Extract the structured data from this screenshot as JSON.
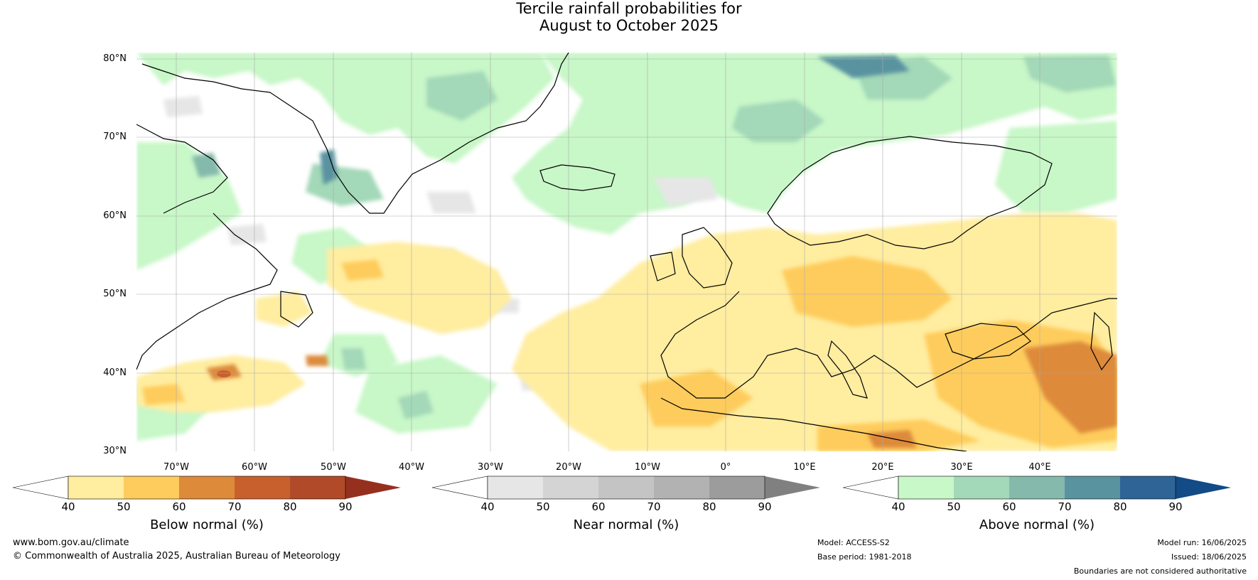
{
  "title": {
    "line1": "Tercile rainfall probabilities for",
    "line2": "August to October 2025"
  },
  "map": {
    "lat_labels": [
      "80°N",
      "70°N",
      "60°N",
      "50°N",
      "40°N",
      "30°N"
    ],
    "lon_labels": [
      "70°W",
      "60°W",
      "50°W",
      "40°W",
      "30°W",
      "20°W",
      "10°W",
      "0°",
      "10°E",
      "20°E",
      "30°E",
      "40°E"
    ],
    "extent": {
      "lon_min": -76,
      "lon_max": 49,
      "lat_min": 30,
      "lat_max": 81
    }
  },
  "colorbars": [
    {
      "name": "below-normal",
      "title": "Below normal (%)",
      "ticks": [
        "40",
        "50",
        "60",
        "70",
        "80",
        "90"
      ],
      "colors": [
        "#ffffff",
        "#ffeda0",
        "#fecc5c",
        "#dd8a3a",
        "#c8602e",
        "#b04a28",
        "#96301e"
      ]
    },
    {
      "name": "near-normal",
      "title": "Near normal (%)",
      "ticks": [
        "40",
        "50",
        "60",
        "70",
        "80",
        "90"
      ],
      "colors": [
        "#ffffff",
        "#e6e6e6",
        "#d4d4d4",
        "#c4c4c4",
        "#b2b2b2",
        "#9c9c9c",
        "#808080"
      ]
    },
    {
      "name": "above-normal",
      "title": "Above normal (%)",
      "ticks": [
        "40",
        "50",
        "60",
        "70",
        "80",
        "90"
      ],
      "colors": [
        "#ffffff",
        "#c8f7c8",
        "#a3d8b8",
        "#84b9ab",
        "#5a93a0",
        "#2e6496",
        "#124b85"
      ]
    }
  ],
  "footer": {
    "website": "www.bom.gov.au/climate",
    "copyright": "© Commonwealth of Australia 2025, Australian Bureau of Meteorology",
    "model": "Model: ACCESS-S2",
    "base_period": "Base period: 1981-2018",
    "model_run": "Model run: 16/06/2025",
    "issued": "Issued: 18/06/2025",
    "disclaimer": "Boundaries are not considered authoritative"
  }
}
